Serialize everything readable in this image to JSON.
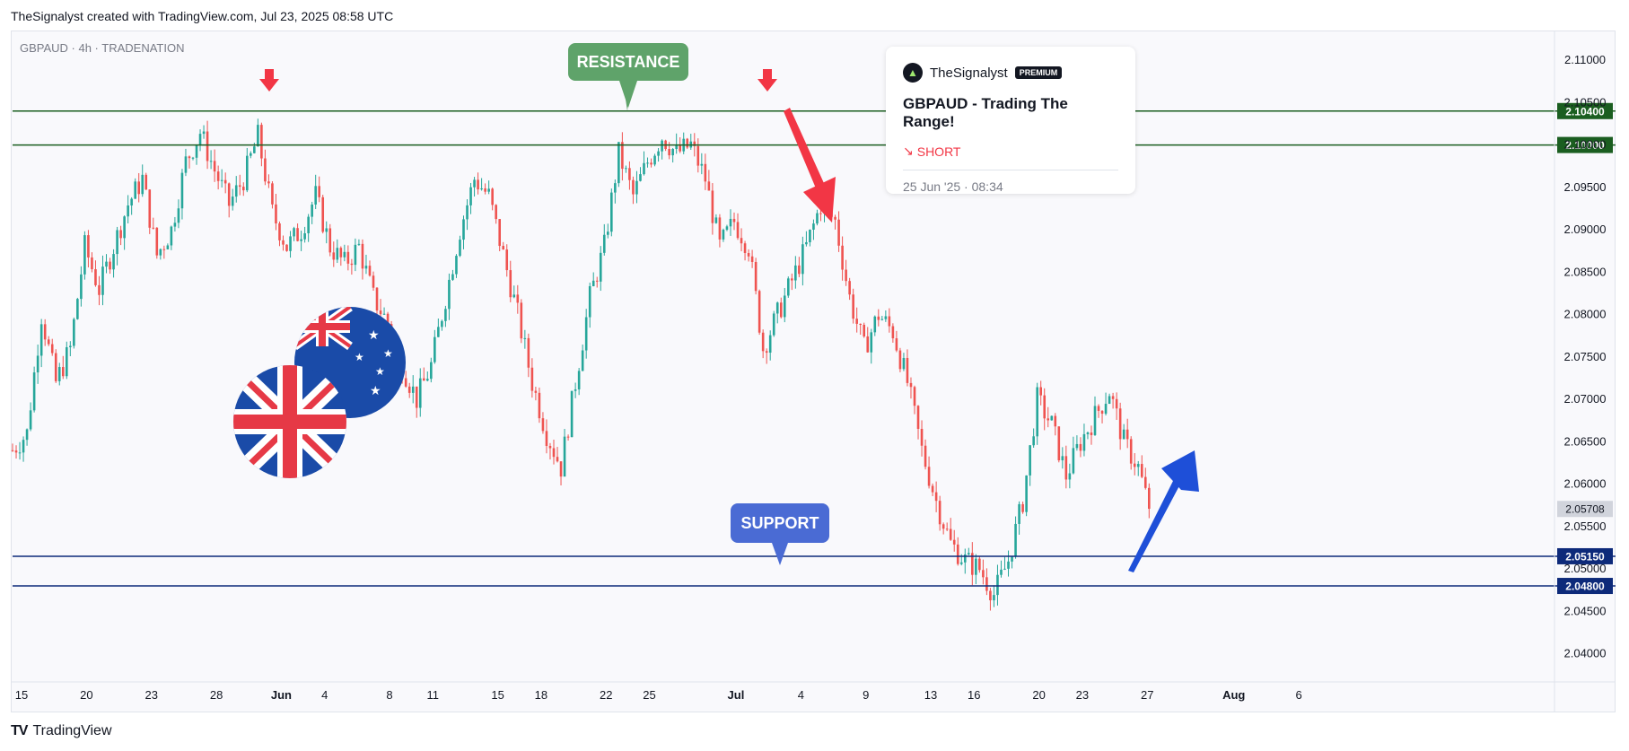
{
  "header": {
    "text": "TheSignalyst created with TradingView.com, Jul 23, 2025 08:58 UTC"
  },
  "footer": {
    "brand": "TradingView",
    "logo_icon": "tradingview-logo-icon"
  },
  "idea_card": {
    "author": "TheSignalyst",
    "badge": "PREMIUM",
    "title": "GBPAUD - Trading The Range!",
    "direction": "SHORT",
    "direction_icon": "trend-down-icon",
    "date": "25 Jun '25 · 08:34",
    "direction_color": "#f23645"
  },
  "chart_data": {
    "type": "candlestick",
    "symbol_label": "GBPAUD · 4h · TRADENATION",
    "ylim": [
      2.037,
      2.1135
    ],
    "price_ticks": [
      "2.11000",
      "2.10500",
      "2.10000",
      "2.09500",
      "2.09000",
      "2.08500",
      "2.08000",
      "2.07500",
      "2.07000",
      "2.06500",
      "2.06000",
      "2.05500",
      "2.05000",
      "2.04500",
      "2.04000"
    ],
    "date_ticks": [
      {
        "label": "15",
        "bar": 0
      },
      {
        "label": "20",
        "bar": 18
      },
      {
        "label": "23",
        "bar": 36
      },
      {
        "label": "28",
        "bar": 54
      },
      {
        "label": "Jun",
        "bar": 72
      },
      {
        "label": "4",
        "bar": 84
      },
      {
        "label": "8",
        "bar": 102
      },
      {
        "label": "11",
        "bar": 114
      },
      {
        "label": "15",
        "bar": 132
      },
      {
        "label": "18",
        "bar": 144
      },
      {
        "label": "22",
        "bar": 162
      },
      {
        "label": "25",
        "bar": 174
      },
      {
        "label": "Jul",
        "bar": 198
      },
      {
        "label": "4",
        "bar": 216
      },
      {
        "label": "9",
        "bar": 234
      },
      {
        "label": "13",
        "bar": 252
      },
      {
        "label": "16",
        "bar": 264
      },
      {
        "label": "20",
        "bar": 282
      },
      {
        "label": "23",
        "bar": 294
      },
      {
        "label": "27",
        "bar": 312
      },
      {
        "label": "Aug",
        "bar": 336
      },
      {
        "label": "6",
        "bar": 354
      }
    ],
    "close_path": [
      [
        0,
        2.064
      ],
      [
        4,
        2.066
      ],
      [
        8,
        2.08
      ],
      [
        12,
        2.072
      ],
      [
        16,
        2.076
      ],
      [
        20,
        2.088
      ],
      [
        24,
        2.083
      ],
      [
        28,
        2.088
      ],
      [
        32,
        2.093
      ],
      [
        36,
        2.096
      ],
      [
        40,
        2.087
      ],
      [
        44,
        2.09
      ],
      [
        48,
        2.098
      ],
      [
        52,
        2.1015
      ],
      [
        56,
        2.097
      ],
      [
        60,
        2.093
      ],
      [
        64,
        2.096
      ],
      [
        68,
        2.101
      ],
      [
        72,
        2.092
      ],
      [
        76,
        2.088
      ],
      [
        80,
        2.09
      ],
      [
        84,
        2.094
      ],
      [
        88,
        2.088
      ],
      [
        92,
        2.086
      ],
      [
        96,
        2.088
      ],
      [
        100,
        2.082
      ],
      [
        104,
        2.079
      ],
      [
        108,
        2.074
      ],
      [
        112,
        2.07
      ],
      [
        116,
        2.074
      ],
      [
        120,
        2.082
      ],
      [
        124,
        2.09
      ],
      [
        128,
        2.096
      ],
      [
        132,
        2.094
      ],
      [
        136,
        2.087
      ],
      [
        140,
        2.08
      ],
      [
        144,
        2.072
      ],
      [
        148,
        2.066
      ],
      [
        152,
        2.062
      ],
      [
        156,
        2.072
      ],
      [
        160,
        2.082
      ],
      [
        164,
        2.088
      ],
      [
        168,
        2.099
      ],
      [
        172,
        2.094
      ],
      [
        176,
        2.098
      ],
      [
        180,
        2.101
      ],
      [
        184,
        2.099
      ],
      [
        188,
        2.1
      ],
      [
        192,
        2.096
      ],
      [
        196,
        2.088
      ],
      [
        200,
        2.091
      ],
      [
        204,
        2.088
      ],
      [
        208,
        2.076
      ],
      [
        212,
        2.08
      ],
      [
        216,
        2.084
      ],
      [
        220,
        2.088
      ],
      [
        224,
        2.093
      ],
      [
        228,
        2.091
      ],
      [
        232,
        2.082
      ],
      [
        236,
        2.076
      ],
      [
        240,
        2.08
      ],
      [
        244,
        2.078
      ],
      [
        248,
        2.072
      ],
      [
        252,
        2.064
      ],
      [
        256,
        2.058
      ],
      [
        260,
        2.053
      ],
      [
        264,
        2.051
      ],
      [
        268,
        2.05
      ],
      [
        272,
        2.047
      ],
      [
        276,
        2.051
      ],
      [
        280,
        2.058
      ],
      [
        284,
        2.07
      ],
      [
        288,
        2.067
      ],
      [
        292,
        2.061
      ],
      [
        296,
        2.065
      ],
      [
        300,
        2.068
      ],
      [
        304,
        2.071
      ],
      [
        308,
        2.065
      ],
      [
        312,
        2.062
      ],
      [
        315,
        2.0571
      ]
    ],
    "current_price": "2.05708",
    "levels": [
      {
        "label": "2.10400",
        "price": 2.104,
        "color": "#1b5e20"
      },
      {
        "label": "2.10000",
        "price": 2.1,
        "color": "#1b5e20"
      },
      {
        "label": "2.05150",
        "price": 2.0515,
        "color": "#0d2a7a"
      },
      {
        "label": "2.04800",
        "price": 2.048,
        "color": "#0d2a7a"
      }
    ],
    "annotations": {
      "resistance": "RESISTANCE",
      "support": "SUPPORT",
      "resistance_color": "#5fa36a",
      "support_color": "#4a6bd4",
      "down_marker_color": "#f23645",
      "up_arrow_color": "#1e4fd8"
    },
    "colors": {
      "up": "#26a69a",
      "down": "#ef5350"
    },
    "grid": false
  }
}
